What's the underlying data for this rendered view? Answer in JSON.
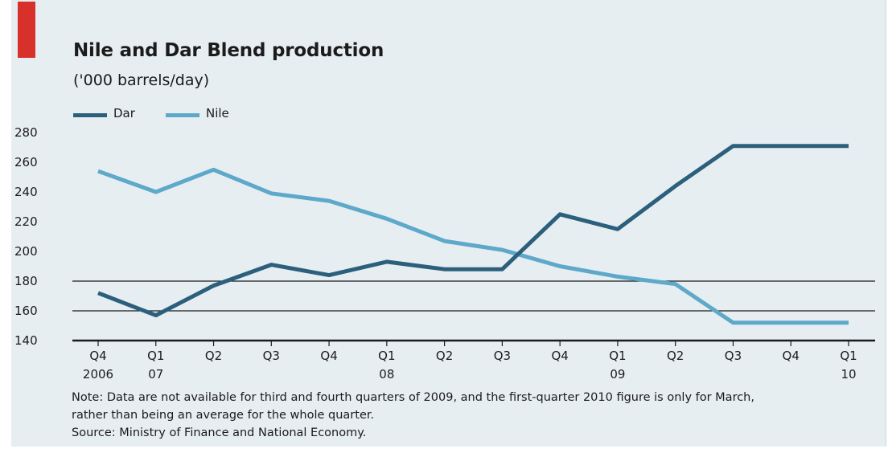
{
  "chart_data": {
    "type": "line",
    "title": "Nile and Dar Blend production",
    "subtitle": "('000 barrels/day)",
    "x_ticks": [
      {
        "top": "Q4",
        "bottom": "2006"
      },
      {
        "top": "Q1",
        "bottom": "07"
      },
      {
        "top": "Q2",
        "bottom": ""
      },
      {
        "top": "Q3",
        "bottom": ""
      },
      {
        "top": "Q4",
        "bottom": ""
      },
      {
        "top": "Q1",
        "bottom": "08"
      },
      {
        "top": "Q2",
        "bottom": ""
      },
      {
        "top": "Q3",
        "bottom": ""
      },
      {
        "top": "Q4",
        "bottom": ""
      },
      {
        "top": "Q1",
        "bottom": "09"
      },
      {
        "top": "Q2",
        "bottom": ""
      },
      {
        "top": "Q3",
        "bottom": ""
      },
      {
        "top": "Q4",
        "bottom": ""
      },
      {
        "top": "Q1",
        "bottom": "10"
      }
    ],
    "y_ticks": [
      140,
      160,
      180,
      200,
      220,
      240,
      260,
      280
    ],
    "ylim": [
      140,
      280
    ],
    "gridlines": [
      160,
      180
    ],
    "legend_position": "top-left",
    "series": [
      {
        "name": "Dar",
        "color": "#2c5f7c",
        "values": [
          172,
          157,
          177,
          191,
          184,
          193,
          188,
          188,
          225,
          215,
          244,
          271,
          271,
          271
        ]
      },
      {
        "name": "Nile",
        "color": "#5ea8c9",
        "values": [
          254,
          240,
          255,
          239,
          234,
          222,
          207,
          201,
          190,
          183,
          178,
          152,
          152,
          152
        ]
      }
    ],
    "note": [
      "Note: Data are not available for third and fourth quarters of 2009, and the first-quarter 2010 figure is only for March,",
      "rather than being an average for the whole quarter.",
      "Source: Ministry of Finance and National Economy."
    ]
  }
}
